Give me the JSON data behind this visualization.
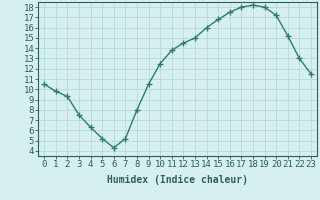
{
  "x": [
    0,
    1,
    2,
    3,
    4,
    5,
    6,
    7,
    8,
    9,
    10,
    11,
    12,
    13,
    14,
    15,
    16,
    17,
    18,
    19,
    20,
    21,
    22,
    23
  ],
  "y": [
    10.5,
    9.8,
    9.3,
    7.5,
    6.3,
    5.2,
    4.3,
    5.2,
    8.0,
    10.5,
    12.5,
    13.8,
    14.5,
    15.0,
    16.0,
    16.8,
    17.5,
    18.0,
    18.2,
    18.0,
    17.2,
    15.2,
    13.0,
    11.5
  ],
  "line_color": "#2e7d6e",
  "marker": "+",
  "bg_color": "#d6f0ef",
  "grid_color": "#b8d8d5",
  "xlabel": "Humidex (Indice chaleur)",
  "xlim": [
    -0.5,
    23.5
  ],
  "ylim": [
    3.5,
    18.5
  ],
  "yticks": [
    4,
    5,
    6,
    7,
    8,
    9,
    10,
    11,
    12,
    13,
    14,
    15,
    16,
    17,
    18
  ],
  "xticks": [
    0,
    1,
    2,
    3,
    4,
    5,
    6,
    7,
    8,
    9,
    10,
    11,
    12,
    13,
    14,
    15,
    16,
    17,
    18,
    19,
    20,
    21,
    22,
    23
  ],
  "tick_label_color": "#2e5f58",
  "axis_color": "#2e5f58",
  "xlabel_color": "#2e5f58",
  "xlabel_fontsize": 7,
  "tick_fontsize": 6.5,
  "line_width": 1.0,
  "marker_size": 4,
  "marker_ew": 1.0
}
